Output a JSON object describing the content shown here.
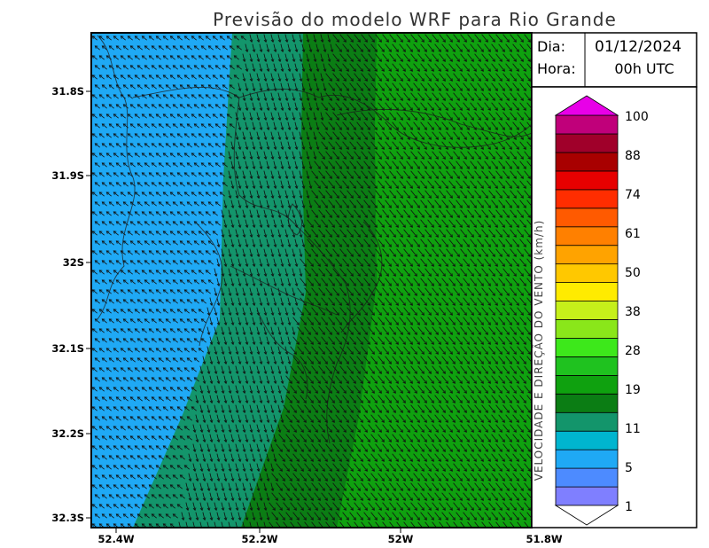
{
  "title": "Previsão do modelo WRF para Rio Grande",
  "info": {
    "date_label": "Dia:",
    "date_value": "01/12/2024",
    "hour_label": "Hora:",
    "hour_value": "00h UTC"
  },
  "axes": {
    "y_ticks": [
      "31.8S",
      "31.9S",
      "32S",
      "32.1S",
      "32.2S",
      "32.3S"
    ],
    "x_ticks": [
      "52.4W",
      "52.2W",
      "52W",
      "51.8W"
    ]
  },
  "colorbar": {
    "title": "VELOCIDADE E DIREÇÃO DO VENTO (km/h)",
    "labels": [
      "100",
      "88",
      "74",
      "61",
      "50",
      "38",
      "28",
      "19",
      "11",
      "5",
      "1"
    ],
    "colors": [
      "#7f7fff",
      "#4d8bff",
      "#1fa9f5",
      "#00b5cf",
      "#13956b",
      "#0b7d14",
      "#0fa10f",
      "#1fc21f",
      "#3de81b",
      "#8ae61a",
      "#c6f01a",
      "#ffeb00",
      "#ffc800",
      "#ffa300",
      "#ff8000",
      "#ff5a00",
      "#ff2d00",
      "#e60000",
      "#a80000",
      "#a0002a",
      "#c0007a"
    ],
    "top_arrow_color": "#e800e8"
  },
  "wind_field_colors": {
    "weak": "#1fa9f5",
    "medium": "#13956b",
    "strong": "#0b7d14",
    "stronger": "#0fa10f"
  }
}
